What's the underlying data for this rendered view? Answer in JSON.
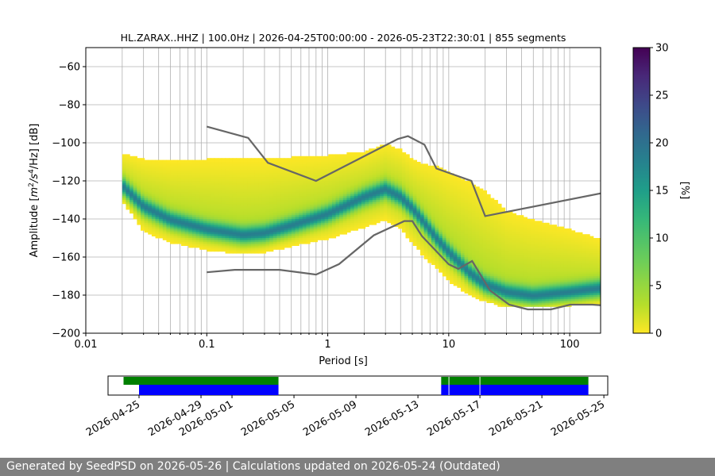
{
  "chart_data": [
    {
      "type": "heatmap",
      "title": "HL.ZARAX..HHZ | 100.0Hz | 2026-04-25T00:00:00 - 2026-05-23T22:30:01 | 855 segments",
      "xlabel": "Period [s]",
      "ylabel_main": "Amplitude [",
      "ylabel_unit": "m",
      "ylabel_suffix": "/Hz] [dB]",
      "x_scale": "log",
      "xlim": [
        0.01,
        180
      ],
      "ylim": [
        -200,
        -50
      ],
      "x_tick_labels": [
        {
          "value": 0.01,
          "label": "0.01"
        },
        {
          "value": 0.1,
          "label": "0.1"
        },
        {
          "value": 1,
          "label": "1"
        },
        {
          "value": 10,
          "label": "10"
        },
        {
          "value": 100,
          "label": "100"
        }
      ],
      "y_tick_labels": [
        {
          "value": -60,
          "label": "−60"
        },
        {
          "value": -80,
          "label": "−80"
        },
        {
          "value": -100,
          "label": "−100"
        },
        {
          "value": -120,
          "label": "−120"
        },
        {
          "value": -140,
          "label": "−140"
        },
        {
          "value": -160,
          "label": "−160"
        },
        {
          "value": -180,
          "label": "−180"
        },
        {
          "value": -200,
          "label": "−200"
        }
      ],
      "grid": true,
      "colorbar": {
        "label": "[%]",
        "range": [
          0,
          30
        ],
        "colormap": "viridis_r",
        "tick_labels": [
          {
            "value": 0,
            "label": "0"
          },
          {
            "value": 5,
            "label": "5"
          },
          {
            "value": 10,
            "label": "10"
          },
          {
            "value": 15,
            "label": "15"
          },
          {
            "value": 20,
            "label": "20"
          },
          {
            "value": 25,
            "label": "25"
          },
          {
            "value": 30,
            "label": "30"
          }
        ]
      },
      "psd_band": {
        "x": [
          0.02,
          0.03,
          0.05,
          0.1,
          0.2,
          0.3,
          0.5,
          1,
          2,
          3,
          4,
          5,
          6,
          8,
          10,
          15,
          20,
          30,
          50,
          100,
          180
        ],
        "mode": [
          -122,
          -133,
          -140,
          -145,
          -148,
          -147,
          -143,
          -137,
          -128,
          -124,
          -128,
          -134,
          -140,
          -150,
          -157,
          -168,
          -174,
          -178,
          -180,
          -178,
          -176
        ],
        "upper": [
          -105,
          -108,
          -109,
          -108,
          -108,
          -108,
          -107,
          -106,
          -104,
          -100,
          -103,
          -108,
          -110,
          -112,
          -115,
          -120,
          -125,
          -135,
          -140,
          -145,
          -150
        ],
        "lower": [
          -130,
          -146,
          -152,
          -156,
          -158,
          -157,
          -154,
          -150,
          -144,
          -140,
          -145,
          -152,
          -158,
          -166,
          -172,
          -180,
          -183,
          -186,
          -186,
          -185,
          -184
        ]
      },
      "noise_models": [
        {
          "x": [
            0.1,
            0.22,
            0.32,
            0.8,
            3.8,
            4.6,
            6.3,
            7.9,
            15.4,
            20,
            200
          ],
          "y": [
            -91.5,
            -97.4,
            -110.5,
            -120.0,
            -98.0,
            -96.5,
            -101.0,
            -113.5,
            -120.0,
            -138.5,
            -126.0
          ]
        },
        {
          "x": [
            0.1,
            0.17,
            0.4,
            0.8,
            1.24,
            2.4,
            4.3,
            5.0,
            6.0,
            10.0,
            12.0,
            15.6,
            21.9,
            31.6,
            45.0,
            70.0,
            101.0,
            154.0,
            200
          ],
          "y": [
            -168.0,
            -166.7,
            -166.7,
            -169.2,
            -163.7,
            -148.6,
            -141.1,
            -141.1,
            -149.0,
            -163.8,
            -166.2,
            -162.1,
            -177.5,
            -185.0,
            -187.5,
            -187.5,
            -185.0,
            -185.0,
            -185.5
          ]
        }
      ]
    },
    {
      "type": "timeline",
      "x_tick_labels": [
        {
          "value": "2026-04-25",
          "label": "2026-04-25"
        },
        {
          "value": "2026-04-29",
          "label": "2026-04-29"
        },
        {
          "value": "2026-05-01",
          "label": "2026-05-01"
        },
        {
          "value": "2026-05-05",
          "label": "2026-05-05"
        },
        {
          "value": "2026-05-09",
          "label": "2026-05-09"
        },
        {
          "value": "2026-05-13",
          "label": "2026-05-13"
        },
        {
          "value": "2026-05-17",
          "label": "2026-05-17"
        },
        {
          "value": "2026-05-21",
          "label": "2026-05-21"
        },
        {
          "value": "2026-05-25",
          "label": "2026-05-25"
        }
      ],
      "xlim": [
        "2026-04-23T00:00",
        "2026-05-25T06:00"
      ],
      "coverage_top": {
        "color": "#008000",
        "segments": [
          [
            "2026-04-24T00:00",
            "2026-05-04T00:00"
          ],
          [
            "2026-05-14T12:00",
            "2026-05-24T00:00"
          ]
        ]
      },
      "coverage_bottom": {
        "color": "#0000ff",
        "segments": [
          [
            "2026-04-25T00:00",
            "2026-05-04T00:00"
          ],
          [
            "2026-05-14T12:00",
            "2026-05-24T00:00"
          ]
        ]
      },
      "gap_marks": [
        "2026-05-15T00:00",
        "2026-05-17T00:00"
      ]
    }
  ],
  "footer": {
    "text": "Generated by SeedPSD on 2026-05-26 | Calculations updated on 2026-05-24 (Outdated)"
  }
}
